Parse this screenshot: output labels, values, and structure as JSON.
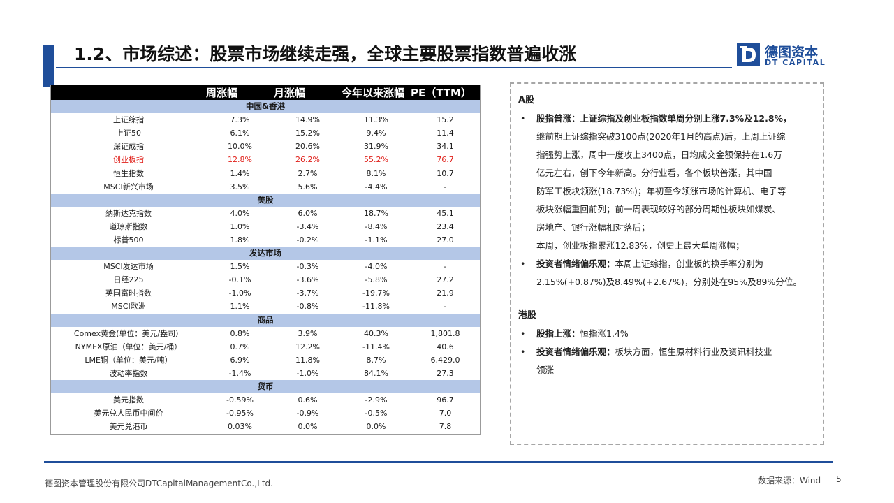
{
  "header": {
    "title": "1.2、市场综述：股票市场继续走强，全球主要股票指数普遍收涨",
    "logo_cn": "德图资本",
    "logo_en": "DT CAPITAL"
  },
  "table": {
    "columns": [
      "",
      "周涨幅",
      "月涨幅",
      "今年以来涨幅",
      "PE（TTM）"
    ],
    "sections": [
      {
        "name": "中国&香港",
        "rows": [
          {
            "name": "上证综指",
            "week": "7.3%",
            "month": "14.9%",
            "ytd": "11.3%",
            "pe": "15.2"
          },
          {
            "name": "上证50",
            "week": "6.1%",
            "month": "15.2%",
            "ytd": "9.4%",
            "pe": "11.4"
          },
          {
            "name": "深证成指",
            "week": "10.0%",
            "month": "20.6%",
            "ytd": "31.9%",
            "pe": "34.1"
          },
          {
            "name": "创业板指",
            "week": "12.8%",
            "month": "26.2%",
            "ytd": "55.2%",
            "pe": "76.7",
            "highlight": true
          },
          {
            "name": "恒生指数",
            "week": "1.4%",
            "month": "2.7%",
            "ytd": "8.1%",
            "pe": "10.7"
          },
          {
            "name": "MSCI新兴市场",
            "week": "3.5%",
            "month": "5.6%",
            "ytd": "-4.4%",
            "pe": "-"
          }
        ]
      },
      {
        "name": "美股",
        "rows": [
          {
            "name": "纳斯达克指数",
            "week": "4.0%",
            "month": "6.0%",
            "ytd": "18.7%",
            "pe": "45.1"
          },
          {
            "name": "道琼斯指数",
            "week": "1.0%",
            "month": "-3.4%",
            "ytd": "-8.4%",
            "pe": "23.4"
          },
          {
            "name": "标普500",
            "week": "1.8%",
            "month": "-0.2%",
            "ytd": "-1.1%",
            "pe": "27.0"
          }
        ]
      },
      {
        "name": "发达市场",
        "rows": [
          {
            "name": "MSCI发达市场",
            "week": "1.5%",
            "month": "-0.3%",
            "ytd": "-4.0%",
            "pe": "-"
          },
          {
            "name": "日经225",
            "week": "-0.1%",
            "month": "-3.6%",
            "ytd": "-5.8%",
            "pe": "27.2"
          },
          {
            "name": "英国富时指数",
            "week": "-1.0%",
            "month": "-3.7%",
            "ytd": "-19.7%",
            "pe": "21.9"
          },
          {
            "name": "MSCI欧洲",
            "week": "1.1%",
            "month": "-0.8%",
            "ytd": "-11.8%",
            "pe": "-"
          }
        ]
      },
      {
        "name": "商品",
        "rows": [
          {
            "name": "Comex黄金(单位：美元/盎司）",
            "week": "0.8%",
            "month": "3.9%",
            "ytd": "40.3%",
            "pe": "1,801.8"
          },
          {
            "name": "NYMEX原油（单位：美元/桶）",
            "week": "0.7%",
            "month": "12.2%",
            "ytd": "-11.4%",
            "pe": "40.6"
          },
          {
            "name": "LME铜（单位：美元/吨）",
            "week": "6.9%",
            "month": "11.8%",
            "ytd": "8.7%",
            "pe": "6,429.0"
          },
          {
            "name": "波动率指数",
            "week": "-1.4%",
            "month": "-1.0%",
            "ytd": "84.1%",
            "pe": "27.3"
          }
        ]
      },
      {
        "name": "货币",
        "rows": [
          {
            "name": "美元指数",
            "week": "-0.59%",
            "month": "0.6%",
            "ytd": "-2.9%",
            "pe": "96.7"
          },
          {
            "name": "美元兑人民币中间价",
            "week": "-0.95%",
            "month": "-0.9%",
            "ytd": "-0.5%",
            "pe": "7.0"
          },
          {
            "name": "美元兑港币",
            "week": "0.03%",
            "month": "0.0%",
            "ytd": "0.0%",
            "pe": "7.8"
          }
        ]
      }
    ]
  },
  "commentary": {
    "a_share": {
      "heading": "A股",
      "b1_label": "股指普涨：",
      "b1_lead": "上证综指及创业板指数单周分别上涨7.3%及12.8%，",
      "b1_lines": [
        "继前期上证综指突破3100点(2020年1月的高点)后，上周上证综",
        "指强势上涨，周中一度攻上3400点，日均成交金额保持在1.6万",
        "亿元左右，创下今年新高。分行业看，各个板块普涨，其中国",
        "防军工板块领涨(18.73%)；年初至今领涨市场的计算机、电子等",
        "板块涨幅重回前列；前一周表现较好的部分周期性板块如煤炭、",
        "房地产、银行涨幅相对落后；",
        "本周，创业板指累涨12.83%，创史上最大单周涨幅；"
      ],
      "b2_label": "投资者情绪偏乐观：",
      "b2_text": "本周上证综指，创业板的换手率分别为",
      "b2_line2": "2.15%(+0.87%)及8.49%(+2.67%)，分别处在95%及89%分位。"
    },
    "hk": {
      "heading": "港股",
      "b1_label": "股指上涨：",
      "b1_text": "恒指涨1.4%",
      "b2_label": "投资者情绪偏乐观：",
      "b2_text": "板块方面，恒生原材料行业及资讯科技业",
      "b2_line2": "领涨"
    },
    "bullet": "•"
  },
  "footer": {
    "company": "德图资本管理股份有限公司DTCapitalManagementCo.,Ltd.",
    "source": "数据来源：Wind",
    "page": "5"
  },
  "colors": {
    "brand_blue": "#1f4e9a",
    "section_fill": "#b4c7e7",
    "highlight_red": "#e0201a"
  }
}
